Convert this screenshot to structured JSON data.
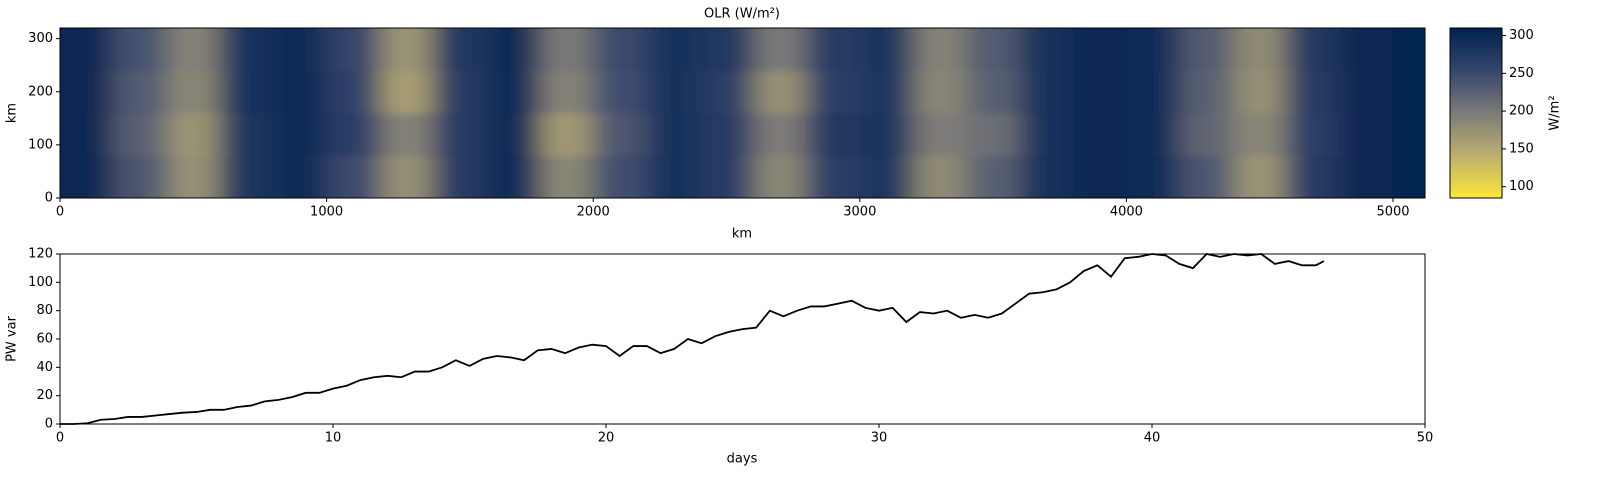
{
  "chart_data": [
    {
      "type": "heatmap",
      "title": "OLR (W/m²)",
      "xlabel": "km",
      "ylabel": "km",
      "xlim": [
        0,
        5120
      ],
      "xticks": [
        0,
        1000,
        2000,
        3000,
        4000,
        5000
      ],
      "ylim": [
        0,
        320
      ],
      "yticks": [
        0,
        100,
        200,
        300
      ],
      "x_edges": [
        0,
        200,
        400,
        600,
        800,
        1000,
        1200,
        1400,
        1600,
        1800,
        2000,
        2200,
        2400,
        2600,
        2800,
        3000,
        3200,
        3400,
        3600,
        3800,
        4000,
        4200,
        4400,
        4600,
        4800,
        5000,
        5120
      ],
      "y_edges": [
        0,
        80,
        160,
        240,
        320
      ],
      "z": [
        [
          300,
          235,
          175,
          280,
          295,
          250,
          175,
          270,
          295,
          185,
          245,
          285,
          270,
          185,
          265,
          280,
          180,
          225,
          285,
          300,
          295,
          235,
          170,
          270,
          300,
          305
        ],
        [
          300,
          225,
          170,
          280,
          295,
          265,
          190,
          270,
          295,
          165,
          235,
          285,
          270,
          195,
          275,
          280,
          195,
          210,
          285,
          300,
          295,
          220,
          185,
          265,
          300,
          305
        ],
        [
          300,
          230,
          185,
          285,
          295,
          260,
          160,
          270,
          295,
          190,
          245,
          285,
          265,
          175,
          265,
          280,
          185,
          225,
          285,
          300,
          295,
          225,
          175,
          270,
          300,
          305
        ],
        [
          300,
          240,
          190,
          285,
          295,
          255,
          170,
          275,
          295,
          200,
          250,
          285,
          275,
          200,
          270,
          280,
          190,
          230,
          285,
          300,
          295,
          230,
          180,
          275,
          300,
          305
        ]
      ],
      "colorbar": {
        "label": "W/m²",
        "clim": [
          85,
          310
        ],
        "ticks": [
          100,
          150,
          200,
          250,
          300
        ],
        "colors": [
          "#fee838",
          "#bcaf6f",
          "#7c7b78",
          "#35456c",
          "#00224e"
        ]
      }
    },
    {
      "type": "line",
      "xlabel": "days",
      "ylabel": "PW var",
      "color": "#000000",
      "xlim": [
        0,
        50
      ],
      "xticks": [
        0,
        10,
        20,
        30,
        40,
        50
      ],
      "ylim": [
        0,
        120
      ],
      "yticks": [
        0,
        20,
        40,
        60,
        80,
        100,
        120
      ],
      "x": [
        0,
        0.5,
        1,
        1.5,
        2,
        2.5,
        3,
        3.5,
        4,
        4.5,
        5,
        5.5,
        6,
        6.5,
        7,
        7.5,
        8,
        8.5,
        9,
        9.5,
        10,
        10.5,
        11,
        11.5,
        12,
        12.5,
        13,
        13.5,
        14,
        14.5,
        15,
        15.5,
        16,
        16.5,
        17,
        17.5,
        18,
        18.5,
        19,
        19.5,
        20,
        20.5,
        21,
        21.5,
        22,
        22.5,
        23,
        23.5,
        24,
        24.5,
        25,
        25.5,
        26,
        26.5,
        27,
        27.5,
        28,
        28.5,
        29,
        29.5,
        30,
        30.5,
        31,
        31.5,
        32,
        32.5,
        33,
        33.5,
        34,
        34.5,
        35,
        35.5,
        36,
        36.5,
        37,
        37.5,
        38,
        38.5,
        39,
        39.5,
        40,
        40.5,
        41,
        41.5,
        42,
        42.5,
        43,
        43.5,
        44,
        44.5,
        45,
        45.5,
        46,
        46.3
      ],
      "values": [
        0,
        0,
        0.5,
        3,
        3.5,
        5,
        5,
        6,
        7,
        8,
        8.5,
        10,
        10,
        12,
        13,
        16,
        17,
        19,
        22,
        22,
        25,
        27,
        31,
        33,
        34,
        33,
        37,
        37,
        40,
        45,
        41,
        46,
        48,
        47,
        45,
        52,
        53,
        50,
        54,
        56,
        55,
        48,
        55,
        55,
        50,
        53,
        60,
        57,
        62,
        65,
        67,
        68,
        80,
        76,
        80,
        83,
        83,
        85,
        87,
        82,
        80,
        82,
        72,
        79,
        78,
        80,
        75,
        77,
        75,
        78,
        85,
        92,
        93,
        95,
        100,
        108,
        112,
        104,
        117,
        118,
        120,
        119,
        113,
        110,
        120,
        118,
        120,
        119,
        120,
        113,
        115,
        112,
        112,
        115
      ]
    }
  ]
}
